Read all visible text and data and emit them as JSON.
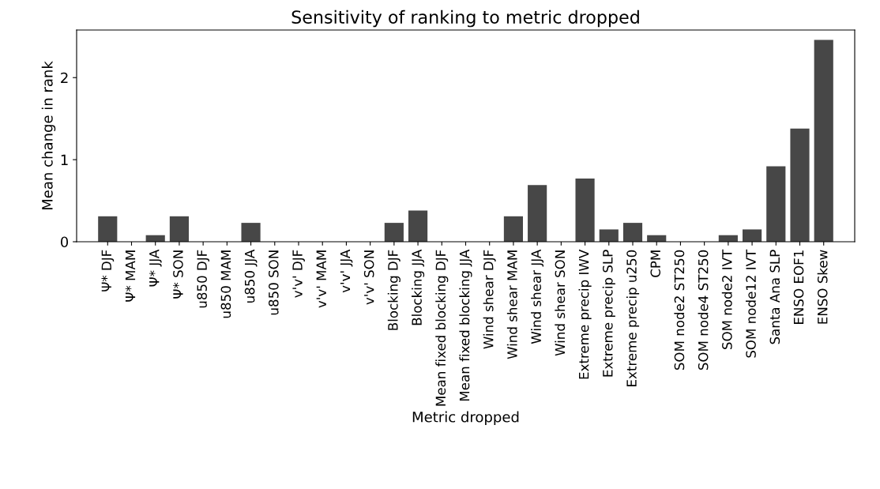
{
  "chart_data": {
    "type": "bar",
    "title": "Sensitivity of ranking to metric dropped",
    "xlabel": "Metric dropped",
    "ylabel": "Mean change in rank",
    "categories": [
      "Ψ* DJF",
      "Ψ* MAM",
      "Ψ* JJA",
      "Ψ* SON",
      "u850 DJF",
      "u850 MAM",
      "u850 JJA",
      "u850 SON",
      "v'v' DJF",
      "v'v' MAM",
      "v'v' JJA",
      "v'v' SON",
      "Blocking DJF",
      "Blocking JJA",
      "Mean fixed blocking DJF",
      "Mean fixed blocking JJA",
      "Wind shear DJF",
      "Wind shear MAM",
      "Wind shear JJA",
      "Wind shear SON",
      "Extreme precip IWV",
      "Extreme precip SLP",
      "Extreme precip u250",
      "CPM",
      "SOM node2 ST250",
      "SOM node4 ST250",
      "SOM node2 IVT",
      "SOM node12 IVT",
      "Santa Ana SLP",
      "ENSO EOF1",
      "ENSO Skew"
    ],
    "values": [
      0.31,
      0,
      0.08,
      0.31,
      0,
      0,
      0.23,
      0,
      0,
      0,
      0,
      0,
      0.23,
      0.38,
      0,
      0,
      0,
      0.31,
      0.69,
      0,
      0.77,
      0.15,
      0.23,
      0.08,
      0,
      0,
      0.08,
      0.15,
      0.92,
      1.38,
      2.46
    ],
    "color": "#474747",
    "ylim": [
      0,
      2.58
    ],
    "yticks": [
      0,
      1,
      2
    ],
    "grid": false,
    "legend": false
  }
}
